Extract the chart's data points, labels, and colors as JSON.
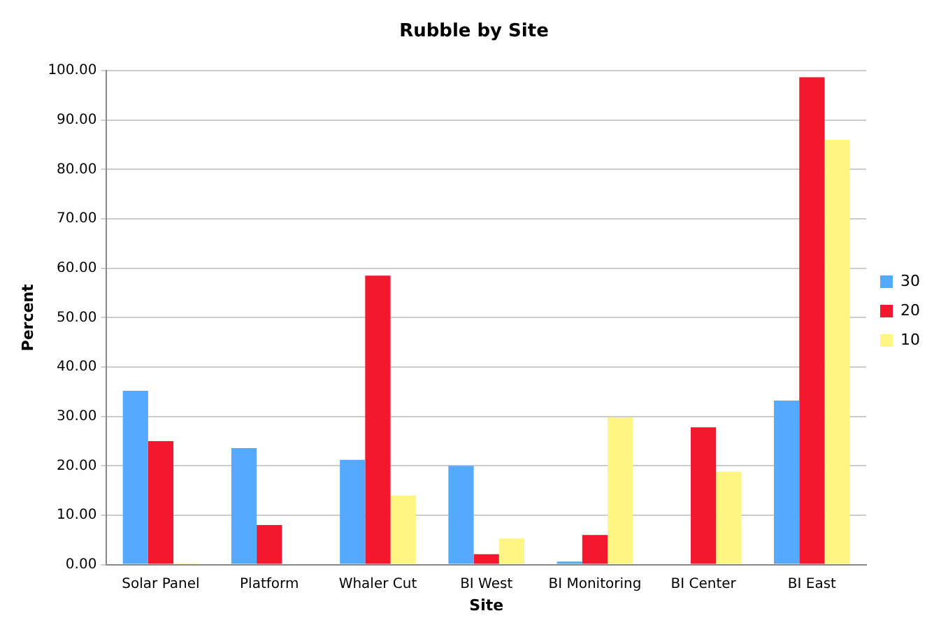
{
  "chart_data": {
    "type": "bar",
    "title": "Rubble by Site",
    "xlabel": "Site",
    "ylabel": "Percent",
    "categories": [
      "Solar Panel",
      "Platform",
      "Whaler Cut",
      "BI West",
      "BI Monitoring",
      "BI Center",
      "BI East"
    ],
    "series": [
      {
        "name": "30",
        "color": "#55aaff",
        "values": [
          35.2,
          23.6,
          21.2,
          20.0,
          0.6,
          0,
          33.2
        ]
      },
      {
        "name": "20",
        "color": "#f3182e",
        "values": [
          25.0,
          8.0,
          58.5,
          2.1,
          6.0,
          27.8,
          98.7
        ]
      },
      {
        "name": "10",
        "color": "#fff582",
        "values": [
          0.3,
          0,
          14.0,
          5.3,
          29.8,
          18.8,
          86.0
        ]
      }
    ],
    "ylim": [
      0,
      100
    ],
    "yticks": [
      {
        "value": 0,
        "label": "0.00"
      },
      {
        "value": 10,
        "label": "10.00"
      },
      {
        "value": 20,
        "label": "20.00"
      },
      {
        "value": 30,
        "label": "30.00"
      },
      {
        "value": 40,
        "label": "40.00"
      },
      {
        "value": 50,
        "label": "50.00"
      },
      {
        "value": 60,
        "label": "60.00"
      },
      {
        "value": 70,
        "label": "70.00"
      },
      {
        "value": 80,
        "label": "80.00"
      },
      {
        "value": 90,
        "label": "90.00"
      },
      {
        "value": 100,
        "label": "100.00"
      }
    ],
    "grid": "y",
    "legend": "right"
  }
}
